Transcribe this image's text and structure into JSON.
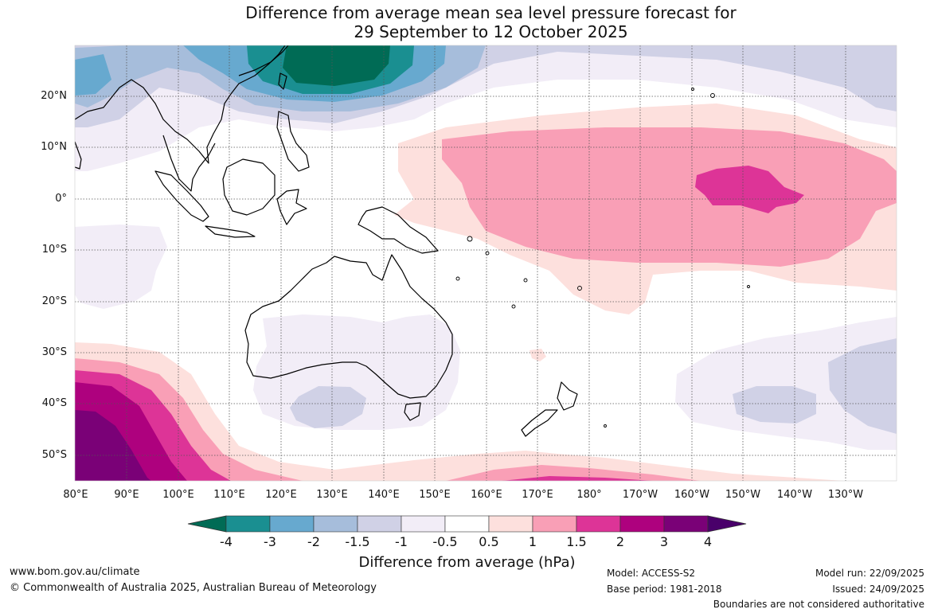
{
  "title": {
    "line1": "Difference from average mean sea level pressure forecast for",
    "line2": "29 September to 12 October 2025"
  },
  "latitude_labels": [
    "20°N",
    "10°N",
    "0°",
    "10°S",
    "20°S",
    "30°S",
    "40°S",
    "50°S"
  ],
  "longitude_labels": [
    "80°E",
    "90°E",
    "100°E",
    "110°E",
    "120°E",
    "130°E",
    "140°E",
    "150°E",
    "160°E",
    "170°E",
    "180°",
    "170°W",
    "160°W",
    "150°W",
    "140°W",
    "130°W"
  ],
  "colorbar": {
    "ticks": [
      "-4",
      "-3",
      "-2",
      "-1.5",
      "-1",
      "-0.5",
      "0.5",
      "1",
      "1.5",
      "2",
      "3",
      "4"
    ],
    "colors": [
      "#006b55",
      "#1a8f91",
      "#67a9cf",
      "#a6bddb",
      "#d0d1e6",
      "#f2edf7",
      "#ffffff",
      "#fde0dd",
      "#f99fb6",
      "#dd3497",
      "#ae017e",
      "#7a0177",
      "#49006a"
    ],
    "title": "Difference from average (hPa)"
  },
  "footer": {
    "website": "www.bom.gov.au/climate",
    "copyright": "© Commonwealth of Australia 2025, Australian Bureau of Meteorology",
    "model": "Model: ACCESS-S2",
    "base_period": "Base period: 1981-2018",
    "model_run": "Model run: 22/09/2025",
    "issued": "Issued: 24/09/2025",
    "disclaimer": "Boundaries are not considered authoritative"
  }
}
